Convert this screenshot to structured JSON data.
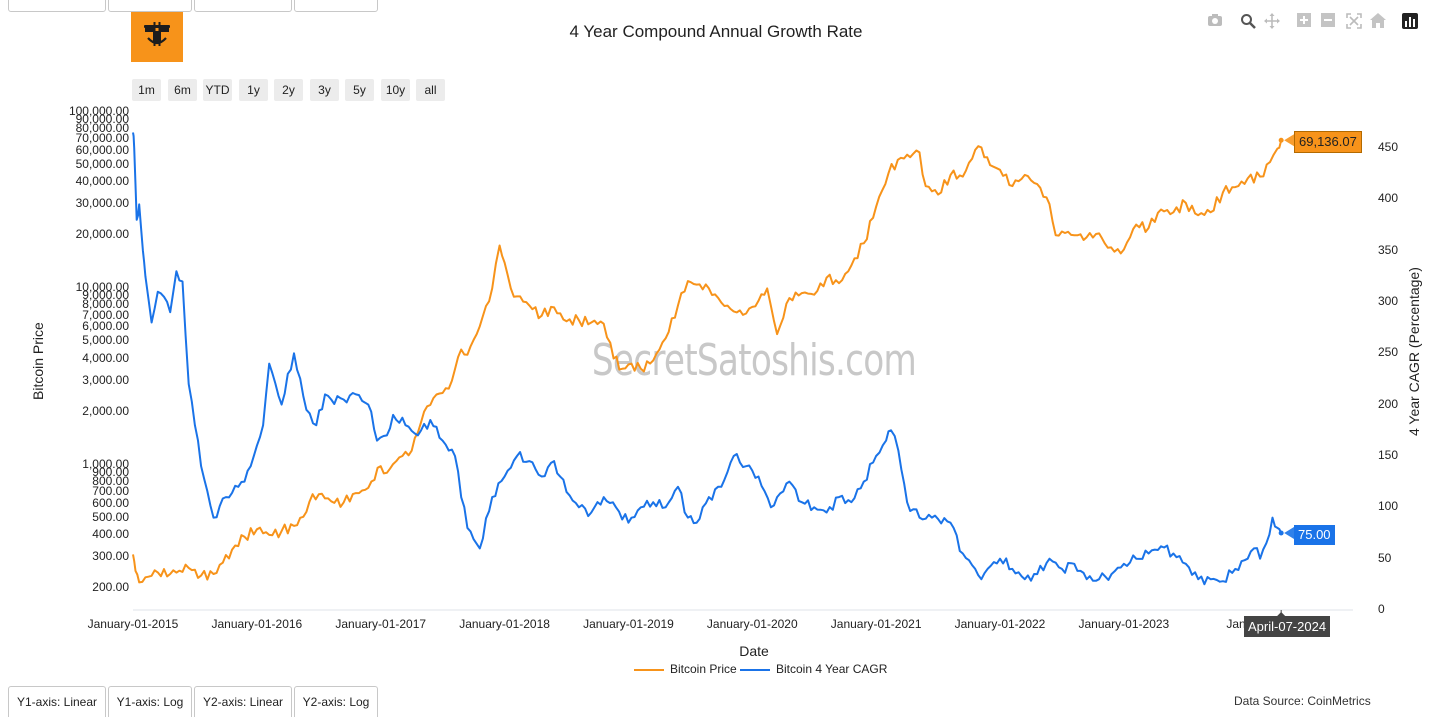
{
  "title": "4 Year Compound Annual Growth Rate",
  "watermark": "SecretSatoshis.com",
  "range_buttons": [
    "1m",
    "6m",
    "YTD",
    "1y",
    "2y",
    "3y",
    "5y",
    "10y",
    "all"
  ],
  "y_axis_buttons": [
    "Y1-axis: Linear",
    "Y1-axis: Log",
    "Y2-axis: Linear",
    "Y2-axis: Log"
  ],
  "data_source": "Data Source: CoinMetrics",
  "hover": {
    "price_label": "69,136.07",
    "cagr_label": "75.00",
    "date_label": "April-07-2024"
  },
  "modebar_icons": [
    "camera-icon",
    "zoom-icon",
    "pan-icon",
    "zoom-in-icon",
    "zoom-out-icon",
    "autoscale-icon",
    "home-icon",
    "chart-icon"
  ],
  "colors": {
    "price": "#f7931a",
    "cagr": "#1a73e8",
    "hover_date_bg": "#444444"
  },
  "chart_data": {
    "type": "line",
    "title": "4 Year Compound Annual Growth Rate",
    "xlabel": "Date",
    "ylabel": "Bitcoin Price",
    "y2label": "4 Year CAGR (Percentage)",
    "y_scale": "log",
    "ylim": [
      150,
      100000
    ],
    "y2lim": [
      0,
      485
    ],
    "x_ticks": [
      "January-01-2015",
      "January-01-2016",
      "January-01-2017",
      "January-01-2018",
      "January-01-2019",
      "January-01-2020",
      "January-01-2021",
      "January-01-2022",
      "January-01-2023",
      "January"
    ],
    "y_ticks": [
      "200.00",
      "300.00",
      "400.00",
      "500.00",
      "600.00",
      "700.00",
      "800.00",
      "900.00",
      "1,000.00",
      "2,000.00",
      "3,000.00",
      "4,000.00",
      "5,000.00",
      "6,000.00",
      "7,000.00",
      "8,000.00",
      "9,000.00",
      "10,000.00",
      "20,000.00",
      "30,000.00",
      "40,000.00",
      "50,000.00",
      "60,000.00",
      "70,000.00",
      "80,000.00",
      "90,000.00",
      "100,000.00"
    ],
    "y2_ticks": [
      "0",
      "50",
      "100",
      "150",
      "200",
      "250",
      "300",
      "350",
      "400",
      "450"
    ],
    "legend_placement": "bottom",
    "series": [
      {
        "name": "Bitcoin Price",
        "axis": "y1",
        "x": [
          2015.0,
          2015.02,
          2015.05,
          2015.1,
          2015.2,
          2015.3,
          2015.45,
          2015.55,
          2015.65,
          2015.8,
          2015.9,
          2016.0,
          2016.1,
          2016.2,
          2016.3,
          2016.4,
          2016.45,
          2016.5,
          2016.6,
          2016.7,
          2016.8,
          2016.9,
          2017.0,
          2017.05,
          2017.15,
          2017.25,
          2017.35,
          2017.45,
          2017.55,
          2017.65,
          2017.7,
          2017.8,
          2017.9,
          2017.96,
          2018.0,
          2018.05,
          2018.1,
          2018.2,
          2018.3,
          2018.4,
          2018.5,
          2018.6,
          2018.7,
          2018.8,
          2018.88,
          2018.95,
          2019.0,
          2019.1,
          2019.2,
          2019.3,
          2019.4,
          2019.48,
          2019.55,
          2019.65,
          2019.75,
          2019.85,
          2019.95,
          2020.05,
          2020.12,
          2020.2,
          2020.3,
          2020.4,
          2020.5,
          2020.6,
          2020.7,
          2020.8,
          2020.9,
          2021.0,
          2021.05,
          2021.1,
          2021.2,
          2021.3,
          2021.35,
          2021.4,
          2021.5,
          2021.6,
          2021.7,
          2021.8,
          2021.85,
          2021.92,
          2022.0,
          2022.1,
          2022.2,
          2022.3,
          2022.4,
          2022.45,
          2022.5,
          2022.6,
          2022.7,
          2022.8,
          2022.87,
          2022.95,
          2023.0,
          2023.1,
          2023.2,
          2023.3,
          2023.4,
          2023.5,
          2023.6,
          2023.7,
          2023.8,
          2023.9,
          2024.0,
          2024.1,
          2024.18,
          2024.24,
          2024.27
        ],
        "values": [
          310,
          250,
          215,
          230,
          245,
          240,
          260,
          235,
          240,
          330,
          390,
          430,
          400,
          420,
          450,
          540,
          680,
          680,
          620,
          610,
          690,
          740,
          980,
          900,
          1100,
          1200,
          2000,
          2500,
          2700,
          4500,
          4200,
          6100,
          10000,
          17500,
          14000,
          10000,
          9000,
          8000,
          7000,
          7800,
          6500,
          6600,
          6400,
          6300,
          4000,
          3500,
          3700,
          3500,
          3900,
          5200,
          8000,
          11000,
          10500,
          10000,
          8300,
          7400,
          7200,
          8500,
          10000,
          5500,
          8800,
          9400,
          9200,
          11500,
          10700,
          13500,
          18000,
          29000,
          36000,
          45000,
          55000,
          58000,
          59000,
          38000,
          34000,
          44000,
          43000,
          61000,
          63000,
          50000,
          47000,
          38000,
          44000,
          39000,
          30000,
          20000,
          21000,
          20000,
          19500,
          20500,
          17000,
          16700,
          16600,
          23000,
          22000,
          28000,
          27000,
          30500,
          26000,
          27000,
          35000,
          37500,
          42000,
          43000,
          52000,
          62000,
          69136.07
        ]
      },
      {
        "name": "Bitcoin 4 Year CAGR",
        "axis": "y2",
        "x": [
          2015.0,
          2015.01,
          2015.03,
          2015.05,
          2015.08,
          2015.1,
          2015.15,
          2015.2,
          2015.25,
          2015.3,
          2015.35,
          2015.4,
          2015.45,
          2015.5,
          2015.55,
          2015.65,
          2015.75,
          2015.85,
          2015.9,
          2015.95,
          2016.0,
          2016.05,
          2016.1,
          2016.2,
          2016.3,
          2016.4,
          2016.48,
          2016.55,
          2016.6,
          2016.7,
          2016.8,
          2016.9,
          2016.97,
          2017.05,
          2017.1,
          2017.2,
          2017.3,
          2017.4,
          2017.5,
          2017.6,
          2017.7,
          2017.8,
          2017.9,
          2018.0,
          2018.1,
          2018.2,
          2018.3,
          2018.4,
          2018.5,
          2018.6,
          2018.7,
          2018.8,
          2018.9,
          2019.0,
          2019.1,
          2019.2,
          2019.3,
          2019.4,
          2019.48,
          2019.55,
          2019.65,
          2019.75,
          2019.85,
          2019.95,
          2020.05,
          2020.15,
          2020.2,
          2020.3,
          2020.4,
          2020.5,
          2020.6,
          2020.7,
          2020.8,
          2020.9,
          2021.0,
          2021.08,
          2021.12,
          2021.18,
          2021.25,
          2021.35,
          2021.45,
          2021.6,
          2021.7,
          2021.8,
          2021.85,
          2021.9,
          2022.0,
          2022.1,
          2022.2,
          2022.3,
          2022.4,
          2022.5,
          2022.6,
          2022.7,
          2022.8,
          2022.9,
          2023.0,
          2023.1,
          2023.2,
          2023.3,
          2023.4,
          2023.5,
          2023.6,
          2023.7,
          2023.8,
          2023.9,
          2024.0,
          2024.05,
          2024.1,
          2024.15,
          2024.2,
          2024.24,
          2024.27
        ],
        "values": [
          465,
          450,
          380,
          395,
          350,
          325,
          280,
          310,
          305,
          290,
          330,
          320,
          220,
          180,
          140,
          90,
          110,
          120,
          125,
          140,
          160,
          180,
          240,
          200,
          250,
          195,
          180,
          210,
          205,
          205,
          210,
          200,
          165,
          170,
          190,
          180,
          170,
          185,
          165,
          150,
          80,
          60,
          110,
          130,
          150,
          145,
          130,
          145,
          115,
          100,
          95,
          110,
          100,
          85,
          100,
          105,
          100,
          120,
          90,
          85,
          110,
          120,
          150,
          140,
          130,
          100,
          110,
          125,
          105,
          100,
          95,
          110,
          105,
          125,
          150,
          165,
          175,
          155,
          105,
          90,
          90,
          85,
          55,
          40,
          30,
          40,
          50,
          40,
          30,
          35,
          50,
          40,
          45,
          30,
          30,
          35,
          45,
          50,
          55,
          62,
          55,
          45,
          30,
          30,
          28,
          40,
          50,
          60,
          50,
          65,
          90,
          80,
          75
        ]
      }
    ]
  }
}
